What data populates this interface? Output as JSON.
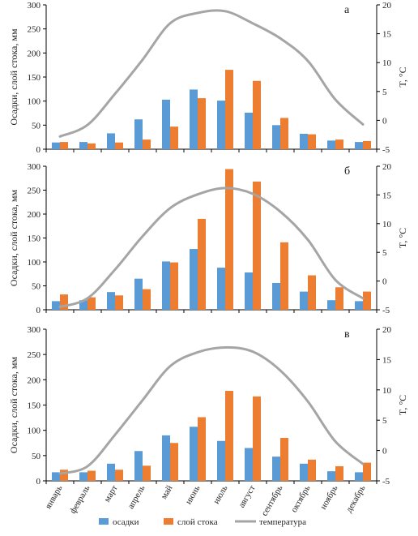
{
  "chart_data": [
    {
      "type": "bar",
      "panel_label": "а",
      "categories": [
        "январь",
        "февраль",
        "март",
        "апрель",
        "май",
        "июнь",
        "июль",
        "август",
        "сентябрь",
        "октябрь",
        "ноябрь",
        "декабрь"
      ],
      "series": [
        {
          "name": "осадки",
          "type": "bar",
          "axis": "left",
          "color": "#5b9bd5",
          "values": [
            14,
            15,
            33,
            62,
            103,
            124,
            101,
            76,
            50,
            32,
            18,
            15
          ]
        },
        {
          "name": "слой стока",
          "type": "bar",
          "axis": "left",
          "color": "#ed7d31",
          "values": [
            15,
            12,
            14,
            20,
            47,
            106,
            165,
            142,
            65,
            31,
            20,
            17
          ]
        },
        {
          "name": "температура",
          "type": "line",
          "axis": "right",
          "color": "#a5a5a5",
          "values": [
            -2.8,
            -0.8,
            4.6,
            10.5,
            16.8,
            18.6,
            18.9,
            16.8,
            14.2,
            10.3,
            3.6,
            -0.7
          ]
        }
      ],
      "ylabel": "Осадки, слой стока, мм",
      "y2label": "T, °C",
      "ylim": [
        0,
        300
      ],
      "y2lim": [
        -5,
        20
      ],
      "yticks": [
        "0",
        "50",
        "100",
        "150",
        "200",
        "250",
        "300"
      ],
      "y2ticks": [
        "-5",
        "0",
        "5",
        "10",
        "15",
        "20"
      ]
    },
    {
      "type": "bar",
      "panel_label": "б",
      "categories": [
        "январь",
        "февраль",
        "март",
        "апрель",
        "май",
        "июнь",
        "июль",
        "август",
        "сентябрь",
        "октябрь",
        "ноябрь",
        "декабрь"
      ],
      "series": [
        {
          "name": "осадки",
          "type": "bar",
          "axis": "left",
          "color": "#5b9bd5",
          "values": [
            18,
            20,
            37,
            65,
            101,
            127,
            88,
            78,
            56,
            38,
            20,
            18
          ]
        },
        {
          "name": "слой стока",
          "type": "bar",
          "axis": "left",
          "color": "#ed7d31",
          "values": [
            32,
            26,
            30,
            43,
            99,
            190,
            294,
            268,
            141,
            72,
            47,
            38
          ]
        },
        {
          "name": "температура",
          "type": "line",
          "axis": "right",
          "color": "#a5a5a5",
          "values": [
            -4.5,
            -3.0,
            2.0,
            7.8,
            12.7,
            15.1,
            16.2,
            15.2,
            12.1,
            7.2,
            0.2,
            -3.0
          ]
        }
      ],
      "ylabel": "Осадки, слой стока, мм",
      "y2label": "T, °C",
      "ylim": [
        0,
        300
      ],
      "y2lim": [
        -5,
        20
      ],
      "yticks": [
        "0",
        "50",
        "100",
        "150",
        "200",
        "250",
        "300"
      ],
      "y2ticks": [
        "-5",
        "0",
        "5",
        "10",
        "15",
        "20"
      ]
    },
    {
      "type": "bar",
      "panel_label": "в",
      "categories": [
        "январь",
        "февраль",
        "март",
        "апрель",
        "май",
        "июнь",
        "июль",
        "август",
        "сентябрь",
        "октябрь",
        "ноябрь",
        "декабрь"
      ],
      "series": [
        {
          "name": "осадки",
          "type": "bar",
          "axis": "left",
          "color": "#5b9bd5",
          "values": [
            17,
            17,
            34,
            59,
            90,
            107,
            79,
            65,
            48,
            34,
            19,
            17
          ]
        },
        {
          "name": "слой стока",
          "type": "bar",
          "axis": "left",
          "color": "#ed7d31",
          "values": [
            22,
            20,
            22,
            30,
            75,
            126,
            178,
            167,
            85,
            42,
            29,
            36
          ]
        },
        {
          "name": "температура",
          "type": "line",
          "axis": "right",
          "color": "#a5a5a5",
          "values": [
            -3.8,
            -2.6,
            2.6,
            8.3,
            13.9,
            16.2,
            17.0,
            16.3,
            13.2,
            8.1,
            1.5,
            -2.2
          ]
        }
      ],
      "ylabel": "Осадки, слой стока, мм",
      "y2label": "T, °C",
      "ylim": [
        0,
        300
      ],
      "y2lim": [
        -5,
        20
      ],
      "yticks": [
        "0",
        "50",
        "100",
        "150",
        "200",
        "250",
        "300"
      ],
      "y2ticks": [
        "-5",
        "0",
        "5",
        "10",
        "15",
        "20"
      ]
    }
  ],
  "legend": {
    "placement": "bottom",
    "items": [
      {
        "label": "осадки",
        "color": "#5b9bd5",
        "kind": "bar"
      },
      {
        "label": "слой стока",
        "color": "#ed7d31",
        "kind": "bar"
      },
      {
        "label": "температура",
        "color": "#a5a5a5",
        "kind": "line"
      }
    ]
  }
}
